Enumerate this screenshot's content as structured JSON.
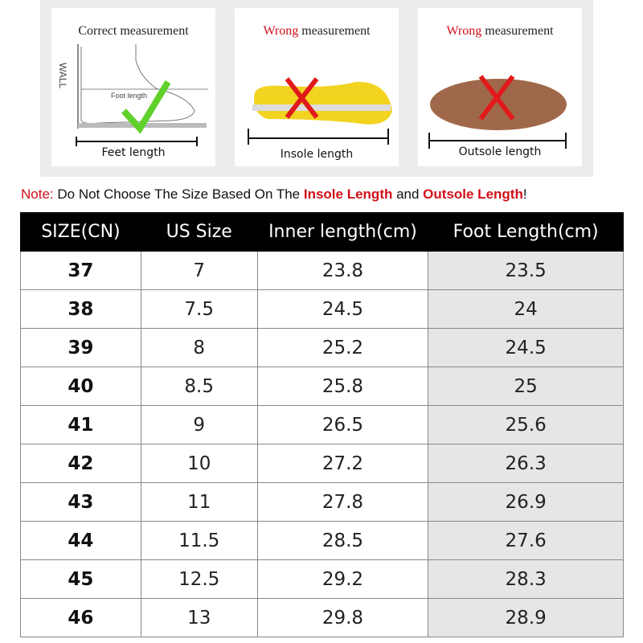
{
  "cards": [
    {
      "title_prefix": "",
      "title_rest": "Correct measurement",
      "caption": "Feet length",
      "wall": "WALL",
      "inner": "Foot length"
    },
    {
      "title_prefix": "Wrong",
      "title_rest": " measurement",
      "caption": "Insole length"
    },
    {
      "title_prefix": "Wrong",
      "title_rest": " measurement",
      "caption": "Outsole length"
    }
  ],
  "note": {
    "label": "Note:",
    "text1": " Do Not Choose The Size Based On The ",
    "insole": "Insole Length",
    "text2": " and ",
    "outsole": "Outsole Length",
    "end": "!"
  },
  "table": {
    "headers": [
      "SIZE(CN)",
      "US Size",
      "Inner length(cm)",
      "Foot Length(cm)"
    ],
    "rows": [
      [
        "37",
        "7",
        "23.8",
        "23.5"
      ],
      [
        "38",
        "7.5",
        "24.5",
        "24"
      ],
      [
        "39",
        "8",
        "25.2",
        "24.5"
      ],
      [
        "40",
        "8.5",
        "25.8",
        "25"
      ],
      [
        "41",
        "9",
        "26.5",
        "25.6"
      ],
      [
        "42",
        "10",
        "27.2",
        "26.3"
      ],
      [
        "43",
        "11",
        "27.8",
        "26.9"
      ],
      [
        "44",
        "11.5",
        "28.5",
        "27.6"
      ],
      [
        "45",
        "12.5",
        "29.2",
        "28.3"
      ],
      [
        "46",
        "13",
        "29.8",
        "28.9"
      ]
    ]
  }
}
